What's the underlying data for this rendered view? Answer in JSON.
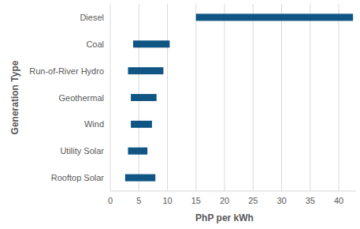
{
  "chart_data": {
    "type": "bar",
    "orientation": "horizontal",
    "x_label": "PhP per kWh",
    "y_label": "Generation Type",
    "categories": [
      "Diesel",
      "Coal",
      "Run-of-River Hydro",
      "Geothermal",
      "Wind",
      "Utility Solar",
      "Rooftop Solar"
    ],
    "values": [
      [
        15,
        42.5
      ],
      [
        4,
        10.4
      ],
      [
        3.1,
        9.3
      ],
      [
        3.6,
        8.1
      ],
      [
        3.6,
        7.3
      ],
      [
        3.1,
        6.5
      ],
      [
        2.6,
        7.9
      ]
    ],
    "color": "#0f5685",
    "xlim": [
      0,
      43
    ],
    "xticks": [
      0,
      5,
      10,
      15,
      20,
      25,
      30,
      35,
      40
    ],
    "grid": true
  }
}
